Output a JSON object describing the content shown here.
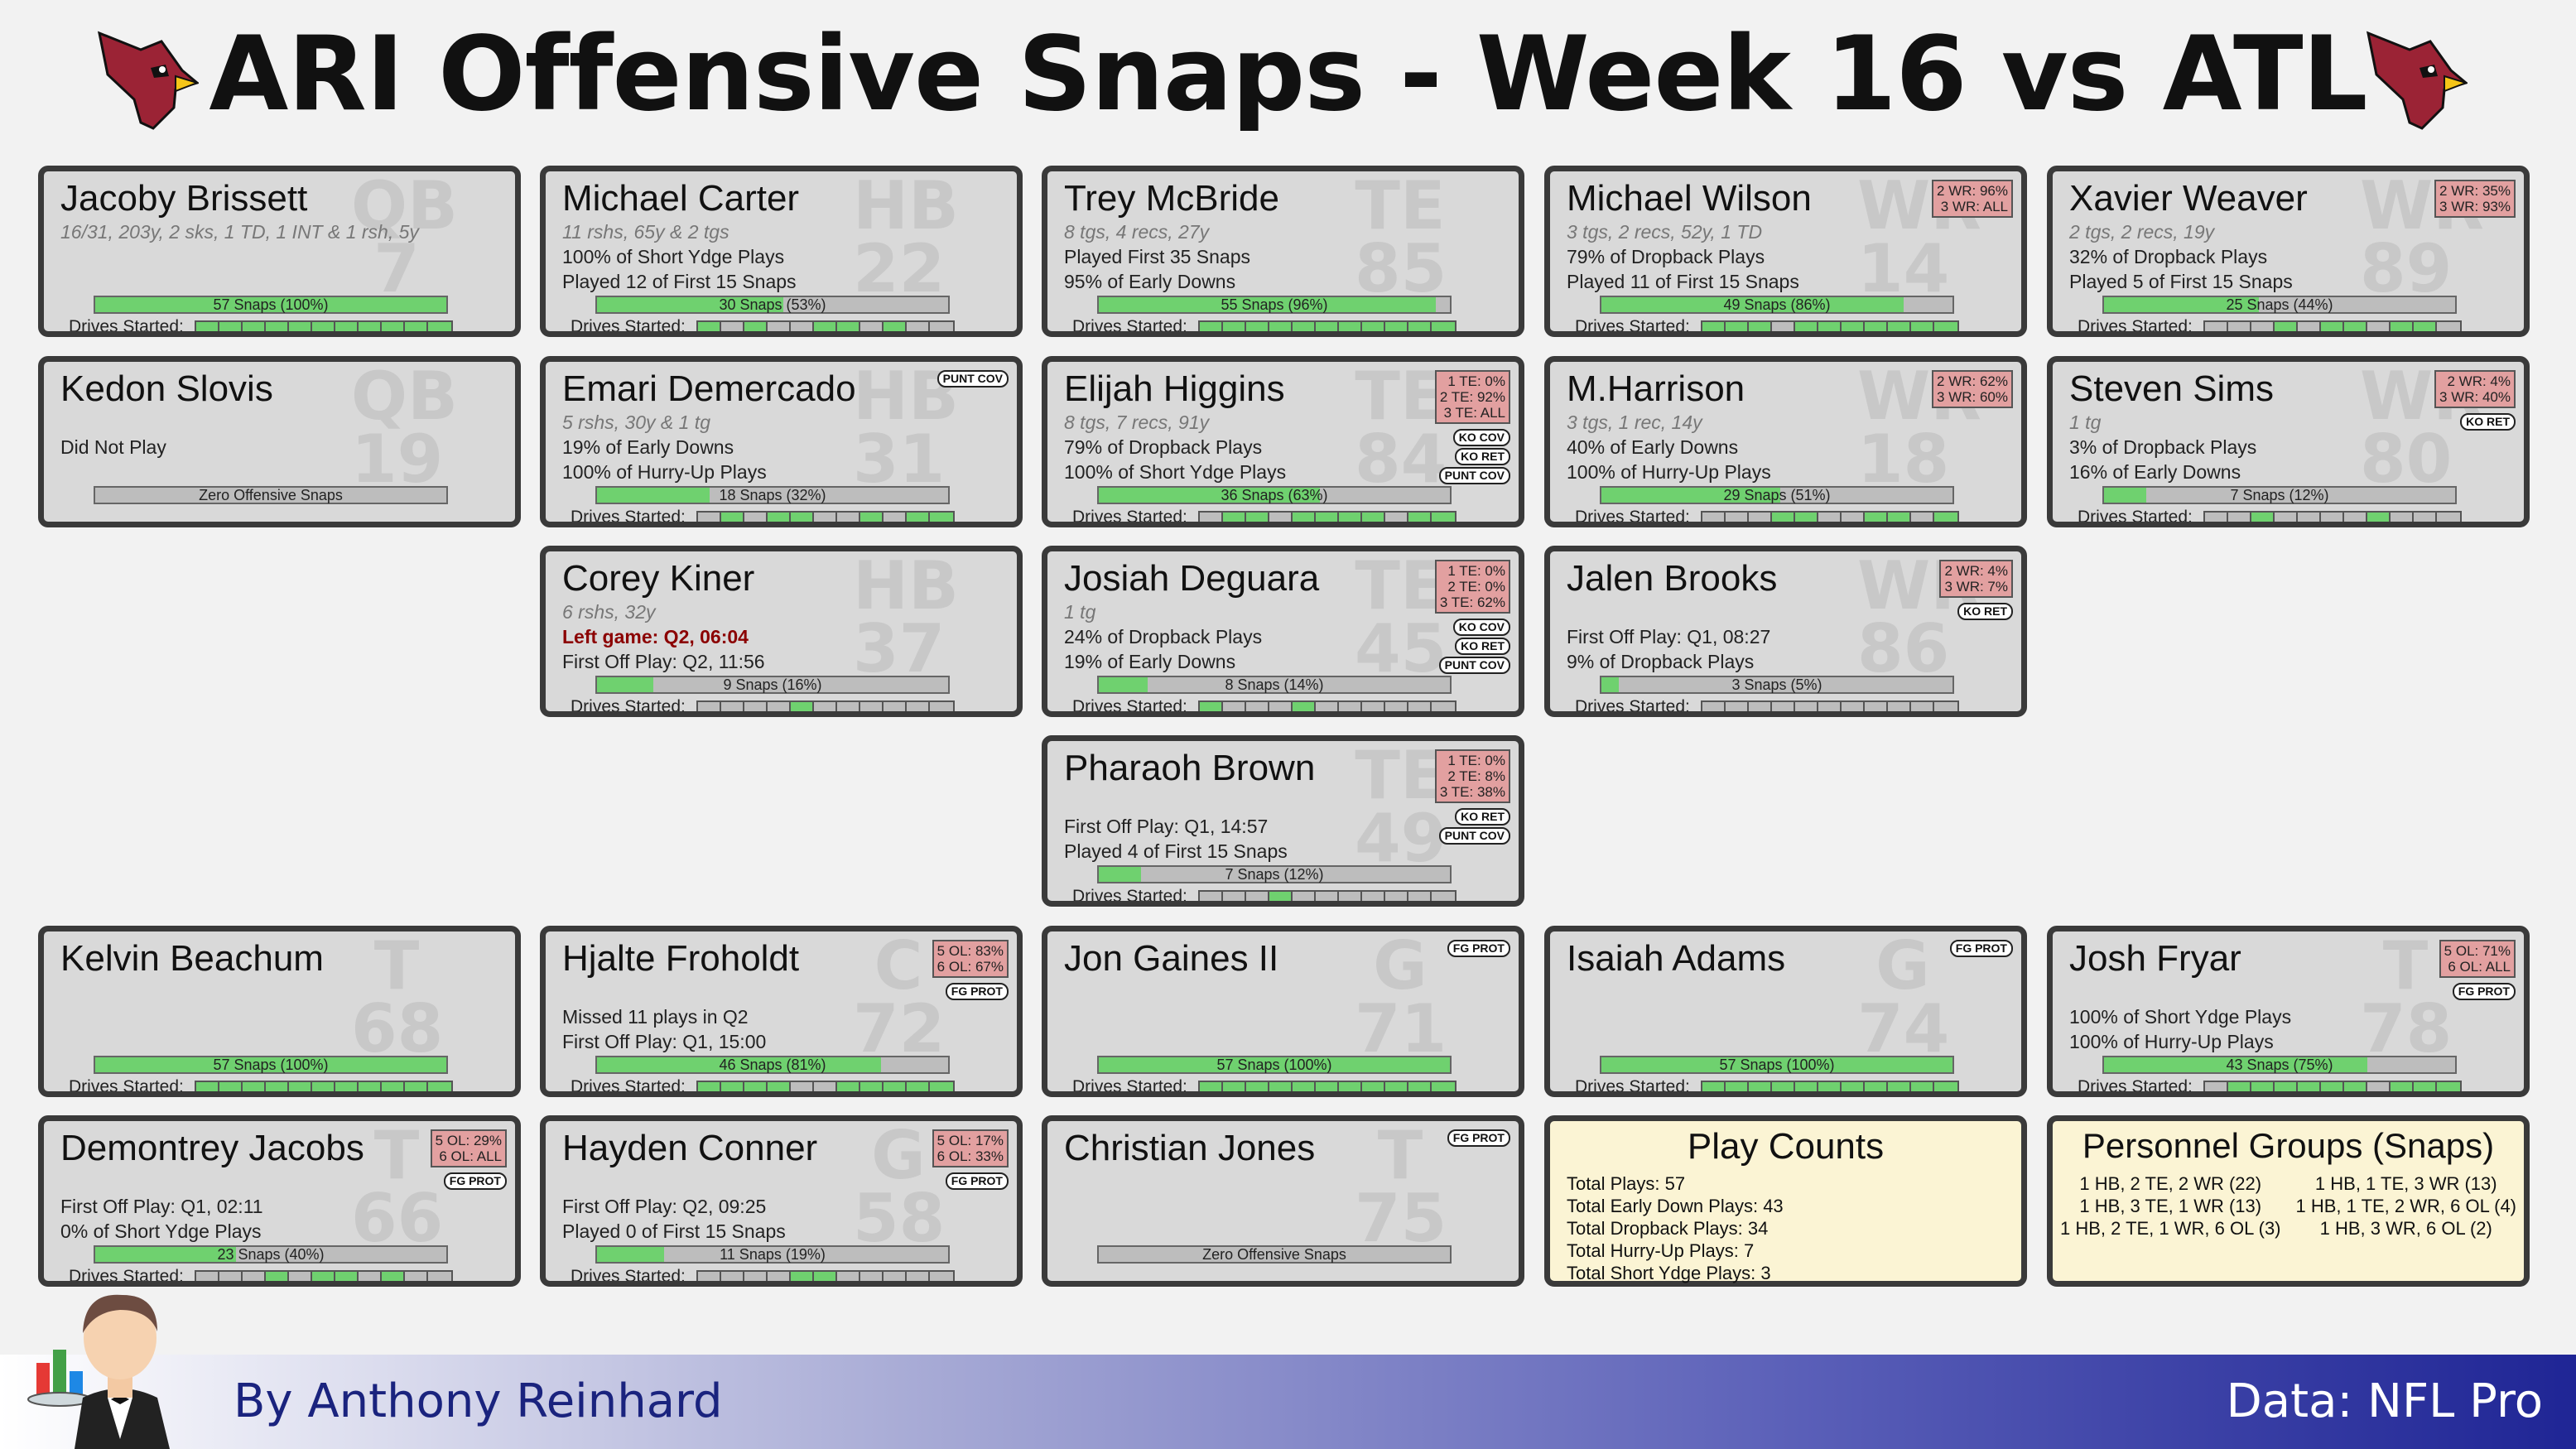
{
  "title": "ARI Offensive Snaps - Week 16 vs ATL",
  "footer": {
    "byline": "By Anthony Reinhard",
    "source": "Data: NFL Pro"
  },
  "colors": {
    "snap_fill": "#6fd16f",
    "card_bg": "#d9d9d9",
    "pct_box": "#e2a0a0",
    "info_bg": "#fbf4d4",
    "logo_red": "#9b2335"
  },
  "players": {
    "brissett": {
      "name": "Jacoby Brissett",
      "pos": "QB",
      "num": "7",
      "stats": "16/31, 203y, 2 sks, 1 TD, 1 INT & 1 rsh, 5y",
      "line1": "",
      "line2": "",
      "snaps_text": "57 Snaps (100%)",
      "snap_pct": 1.0,
      "drives_label": "Drives Started:",
      "drives": [
        1,
        1,
        1,
        1,
        1,
        1,
        1,
        1,
        1,
        1,
        1
      ]
    },
    "slovis": {
      "name": "Kedon Slovis",
      "pos": "QB",
      "num": "19",
      "stats": "",
      "line1": "Did Not Play",
      "line2": "",
      "snaps_text": "Zero Offensive Snaps",
      "snap_pct": 0.0
    },
    "carter": {
      "name": "Michael Carter",
      "pos": "HB",
      "num": "22",
      "stats": "11 rshs, 65y & 2 tgs",
      "line1": "100% of Short Ydge Plays",
      "line2": "Played 12 of First 15 Snaps",
      "snaps_text": "30 Snaps (53%)",
      "snap_pct": 0.53,
      "drives_label": "Drives Started:",
      "drives": [
        1,
        0,
        1,
        0,
        0,
        1,
        1,
        0,
        1,
        0,
        0
      ]
    },
    "demercado": {
      "name": "Emari Demercado",
      "pos": "HB",
      "num": "31",
      "stats": "5 rshs, 30y & 1 tg",
      "line1": "19% of Early Downs",
      "line2": "100% of Hurry-Up Plays",
      "snaps_text": "18 Snaps (32%)",
      "snap_pct": 0.32,
      "drives_label": "Drives Started:",
      "drives": [
        0,
        1,
        0,
        1,
        1,
        0,
        0,
        1,
        0,
        1,
        1
      ],
      "tags": [
        "PUNT COV"
      ]
    },
    "kiner": {
      "name": "Corey Kiner",
      "pos": "HB",
      "num": "37",
      "stats": "6 rshs, 32y",
      "line1": "Left game: Q2, 06:04",
      "line2": "First Off Play: Q2, 11:56",
      "snaps_text": "9 Snaps (16%)",
      "snap_pct": 0.16,
      "drives_label": "Drives Started:",
      "drives": [
        0,
        0,
        0,
        0,
        1,
        0,
        0,
        0,
        0,
        0,
        0
      ]
    },
    "mcbride": {
      "name": "Trey McBride",
      "pos": "TE",
      "num": "85",
      "stats": "8 tgs, 4 recs, 27y",
      "line1": "Played First 35 Snaps",
      "line2": "95% of Early Downs",
      "snaps_text": "55 Snaps (96%)",
      "snap_pct": 0.96,
      "drives_label": "Drives Started:",
      "drives": [
        1,
        1,
        1,
        1,
        1,
        1,
        1,
        1,
        1,
        1,
        1
      ]
    },
    "higgins": {
      "name": "Elijah Higgins",
      "pos": "TE",
      "num": "84",
      "stats": "8 tgs, 7 recs, 91y",
      "line1": "79% of Dropback Plays",
      "line2": "100% of Short Ydge Plays",
      "snaps_text": "36 Snaps (63%)",
      "snap_pct": 0.63,
      "drives_label": "Drives Started:",
      "drives": [
        0,
        1,
        1,
        0,
        1,
        1,
        1,
        1,
        0,
        1,
        1
      ],
      "pct_lines": [
        "1 TE:  0%",
        "2 TE: 92%",
        "3 TE: ALL"
      ],
      "tags": [
        "KO COV",
        "KO RET",
        "PUNT COV"
      ]
    },
    "deguara": {
      "name": "Josiah Deguara",
      "pos": "TE",
      "num": "45",
      "stats": "1 tg",
      "line1": "24% of Dropback Plays",
      "line2": "19% of Early Downs",
      "snaps_text": "8 Snaps (14%)",
      "snap_pct": 0.14,
      "drives_label": "Drives Started:",
      "drives": [
        1,
        0,
        0,
        0,
        1,
        0,
        0,
        0,
        0,
        0,
        0
      ],
      "pct_lines": [
        "1 TE:  0%",
        "2 TE:  0%",
        "3 TE: 62%"
      ],
      "tags": [
        "KO COV",
        "KO RET",
        "PUNT COV"
      ]
    },
    "brown": {
      "name": "Pharaoh Brown",
      "pos": "TE",
      "num": "49",
      "stats": "",
      "line1": "First Off Play: Q1, 14:57",
      "line2": "Played 4 of First 15 Snaps",
      "snaps_text": "7 Snaps (12%)",
      "snap_pct": 0.12,
      "drives_label": "Drives Started:",
      "drives": [
        0,
        0,
        0,
        1,
        0,
        0,
        0,
        0,
        0,
        0,
        0
      ],
      "pct_lines": [
        "1 TE:  0%",
        "2 TE:  8%",
        "3 TE: 38%"
      ],
      "tags": [
        "KO RET",
        "PUNT COV"
      ]
    },
    "wilson": {
      "name": "Michael Wilson",
      "pos": "WR",
      "num": "14",
      "stats": "3 tgs, 2 recs, 52y, 1 TD",
      "line1": "79% of Dropback Plays",
      "line2": "Played 11 of First 15 Snaps",
      "snaps_text": "49 Snaps (86%)",
      "snap_pct": 0.86,
      "drives_label": "Drives Started:",
      "drives": [
        1,
        1,
        1,
        0,
        1,
        1,
        1,
        1,
        1,
        1,
        1
      ],
      "pct_lines": [
        "2 WR: 96%",
        "3 WR: ALL"
      ]
    },
    "harrison": {
      "name": "M.Harrison",
      "pos": "WR",
      "num": "18",
      "stats": "3 tgs, 1 rec, 14y",
      "line1": "40% of Early Downs",
      "line2": "100% of Hurry-Up Plays",
      "snaps_text": "29 Snaps (51%)",
      "snap_pct": 0.51,
      "drives_label": "Drives Started:",
      "drives": [
        0,
        0,
        0,
        1,
        1,
        0,
        0,
        1,
        1,
        0,
        1
      ],
      "pct_lines": [
        "2 WR: 62%",
        "3 WR: 60%"
      ]
    },
    "brooks": {
      "name": "Jalen Brooks",
      "pos": "WR",
      "num": "86",
      "stats": "",
      "line1": "First Off Play: Q1, 08:27",
      "line2": "9% of Dropback Plays",
      "snaps_text": "3 Snaps (5%)",
      "snap_pct": 0.05,
      "drives_label": "Drives Started:",
      "drives": [
        0,
        0,
        0,
        0,
        0,
        0,
        0,
        0,
        0,
        0,
        0
      ],
      "pct_lines": [
        "2 WR:  4%",
        "3 WR:  7%"
      ],
      "tags": [
        "KO RET"
      ]
    },
    "weaver": {
      "name": "Xavier Weaver",
      "pos": "WR",
      "num": "89",
      "stats": "2 tgs, 2 recs, 19y",
      "line1": "32% of Dropback Plays",
      "line2": "Played 5 of First 15 Snaps",
      "snaps_text": "25 Snaps (44%)",
      "snap_pct": 0.44,
      "drives_label": "Drives Started:",
      "drives": [
        0,
        0,
        0,
        1,
        0,
        1,
        1,
        0,
        1,
        1,
        0
      ],
      "pct_lines": [
        "2 WR: 35%",
        "3 WR: 93%"
      ]
    },
    "sims": {
      "name": "Steven Sims",
      "pos": "WR",
      "num": "80",
      "stats": "1 tg",
      "line1": "3% of Dropback Plays",
      "line2": "16% of Early Downs",
      "snaps_text": "7 Snaps (12%)",
      "snap_pct": 0.12,
      "drives_label": "Drives Started:",
      "drives": [
        0,
        0,
        1,
        0,
        0,
        0,
        0,
        1,
        0,
        0,
        0
      ],
      "pct_lines": [
        "2 WR:  4%",
        "3 WR: 40%"
      ],
      "tags": [
        "KO RET"
      ]
    },
    "beachum": {
      "name": "Kelvin Beachum",
      "pos": "T",
      "num": "68",
      "stats": "",
      "line1": "",
      "line2": "",
      "snaps_text": "57 Snaps (100%)",
      "snap_pct": 1.0,
      "drives_label": "Drives Started:",
      "drives": [
        1,
        1,
        1,
        1,
        1,
        1,
        1,
        1,
        1,
        1,
        1
      ]
    },
    "froholdt": {
      "name": "Hjalte Froholdt",
      "pos": "C",
      "num": "72",
      "stats": "",
      "line1": "Missed 11 plays in Q2",
      "line2": "First Off Play: Q1, 15:00",
      "snaps_text": "46 Snaps (81%)",
      "snap_pct": 0.81,
      "drives_label": "Drives Started:",
      "drives": [
        1,
        1,
        1,
        1,
        0,
        0,
        1,
        1,
        1,
        1,
        1
      ],
      "pct_lines": [
        "5 OL: 83%",
        "6 OL: 67%"
      ],
      "tags": [
        "FG PROT"
      ]
    },
    "gaines": {
      "name": "Jon Gaines II",
      "pos": "G",
      "num": "71",
      "stats": "",
      "line1": "",
      "line2": "",
      "snaps_text": "57 Snaps (100%)",
      "snap_pct": 1.0,
      "drives_label": "Drives Started:",
      "drives": [
        1,
        1,
        1,
        1,
        1,
        1,
        1,
        1,
        1,
        1,
        1
      ],
      "tags": [
        "FG PROT"
      ]
    },
    "adams": {
      "name": "Isaiah Adams",
      "pos": "G",
      "num": "74",
      "stats": "",
      "line1": "",
      "line2": "",
      "snaps_text": "57 Snaps (100%)",
      "snap_pct": 1.0,
      "drives_label": "Drives Started:",
      "drives": [
        1,
        1,
        1,
        1,
        1,
        1,
        1,
        1,
        1,
        1,
        1
      ],
      "tags": [
        "FG PROT"
      ]
    },
    "fryar": {
      "name": "Josh Fryar",
      "pos": "T",
      "num": "78",
      "stats": "",
      "line1": "100% of Short Ydge Plays",
      "line2": "100% of Hurry-Up Plays",
      "snaps_text": "43 Snaps (75%)",
      "snap_pct": 0.75,
      "drives_label": "Drives Started:",
      "drives": [
        0,
        1,
        1,
        1,
        1,
        1,
        1,
        0,
        1,
        1,
        1
      ],
      "pct_lines": [
        "5 OL: 71%",
        "6 OL: ALL"
      ],
      "tags": [
        "FG PROT"
      ]
    },
    "jacobs": {
      "name": "Demontrey Jacobs",
      "pos": "T",
      "num": "66",
      "stats": "",
      "line1": "First Off Play: Q1, 02:11",
      "line2": "0% of Short Ydge Plays",
      "snaps_text": "23 Snaps (40%)",
      "snap_pct": 0.4,
      "drives_label": "Drives Started:",
      "drives": [
        0,
        0,
        0,
        1,
        0,
        1,
        1,
        0,
        1,
        0,
        0
      ],
      "pct_lines": [
        "5 OL: 29%",
        "6 OL: ALL"
      ],
      "tags": [
        "FG PROT"
      ]
    },
    "conner": {
      "name": "Hayden Conner",
      "pos": "G",
      "num": "58",
      "stats": "",
      "line1": "First Off Play: Q2, 09:25",
      "line2": "Played 0 of First 15 Snaps",
      "snaps_text": "11 Snaps (19%)",
      "snap_pct": 0.19,
      "drives_label": "Drives Started:",
      "drives": [
        0,
        0,
        0,
        0,
        1,
        1,
        0,
        0,
        0,
        0,
        0
      ],
      "pct_lines": [
        "5 OL: 17%",
        "6 OL: 33%"
      ],
      "tags": [
        "FG PROT"
      ]
    },
    "cjones": {
      "name": "Christian Jones",
      "pos": "T",
      "num": "75",
      "stats": "",
      "line1": "",
      "line2": "",
      "snaps_text": "Zero Offensive Snaps",
      "snap_pct": 0.0,
      "tags": [
        "FG PROT"
      ]
    }
  },
  "play_counts": {
    "title": "Play Counts",
    "lines": [
      "Total Plays: 57",
      "Total Early Down Plays: 43",
      "Total Dropback Plays: 34",
      "Total Hurry-Up Plays: 7",
      "Total Short Ydge Plays: 3"
    ]
  },
  "personnel": {
    "title": "Personnel Groups (Snaps)",
    "groups": [
      "1 HB, 2 TE, 2 WR (22)",
      "1 HB, 1 TE, 3 WR (13)",
      "1 HB, 3 TE, 1 WR (13)",
      "1 HB, 1 TE, 2 WR, 6 OL (4)",
      "1 HB, 2 TE, 1 WR, 6 OL (3)",
      "1 HB, 3 WR, 6 OL (2)"
    ]
  }
}
